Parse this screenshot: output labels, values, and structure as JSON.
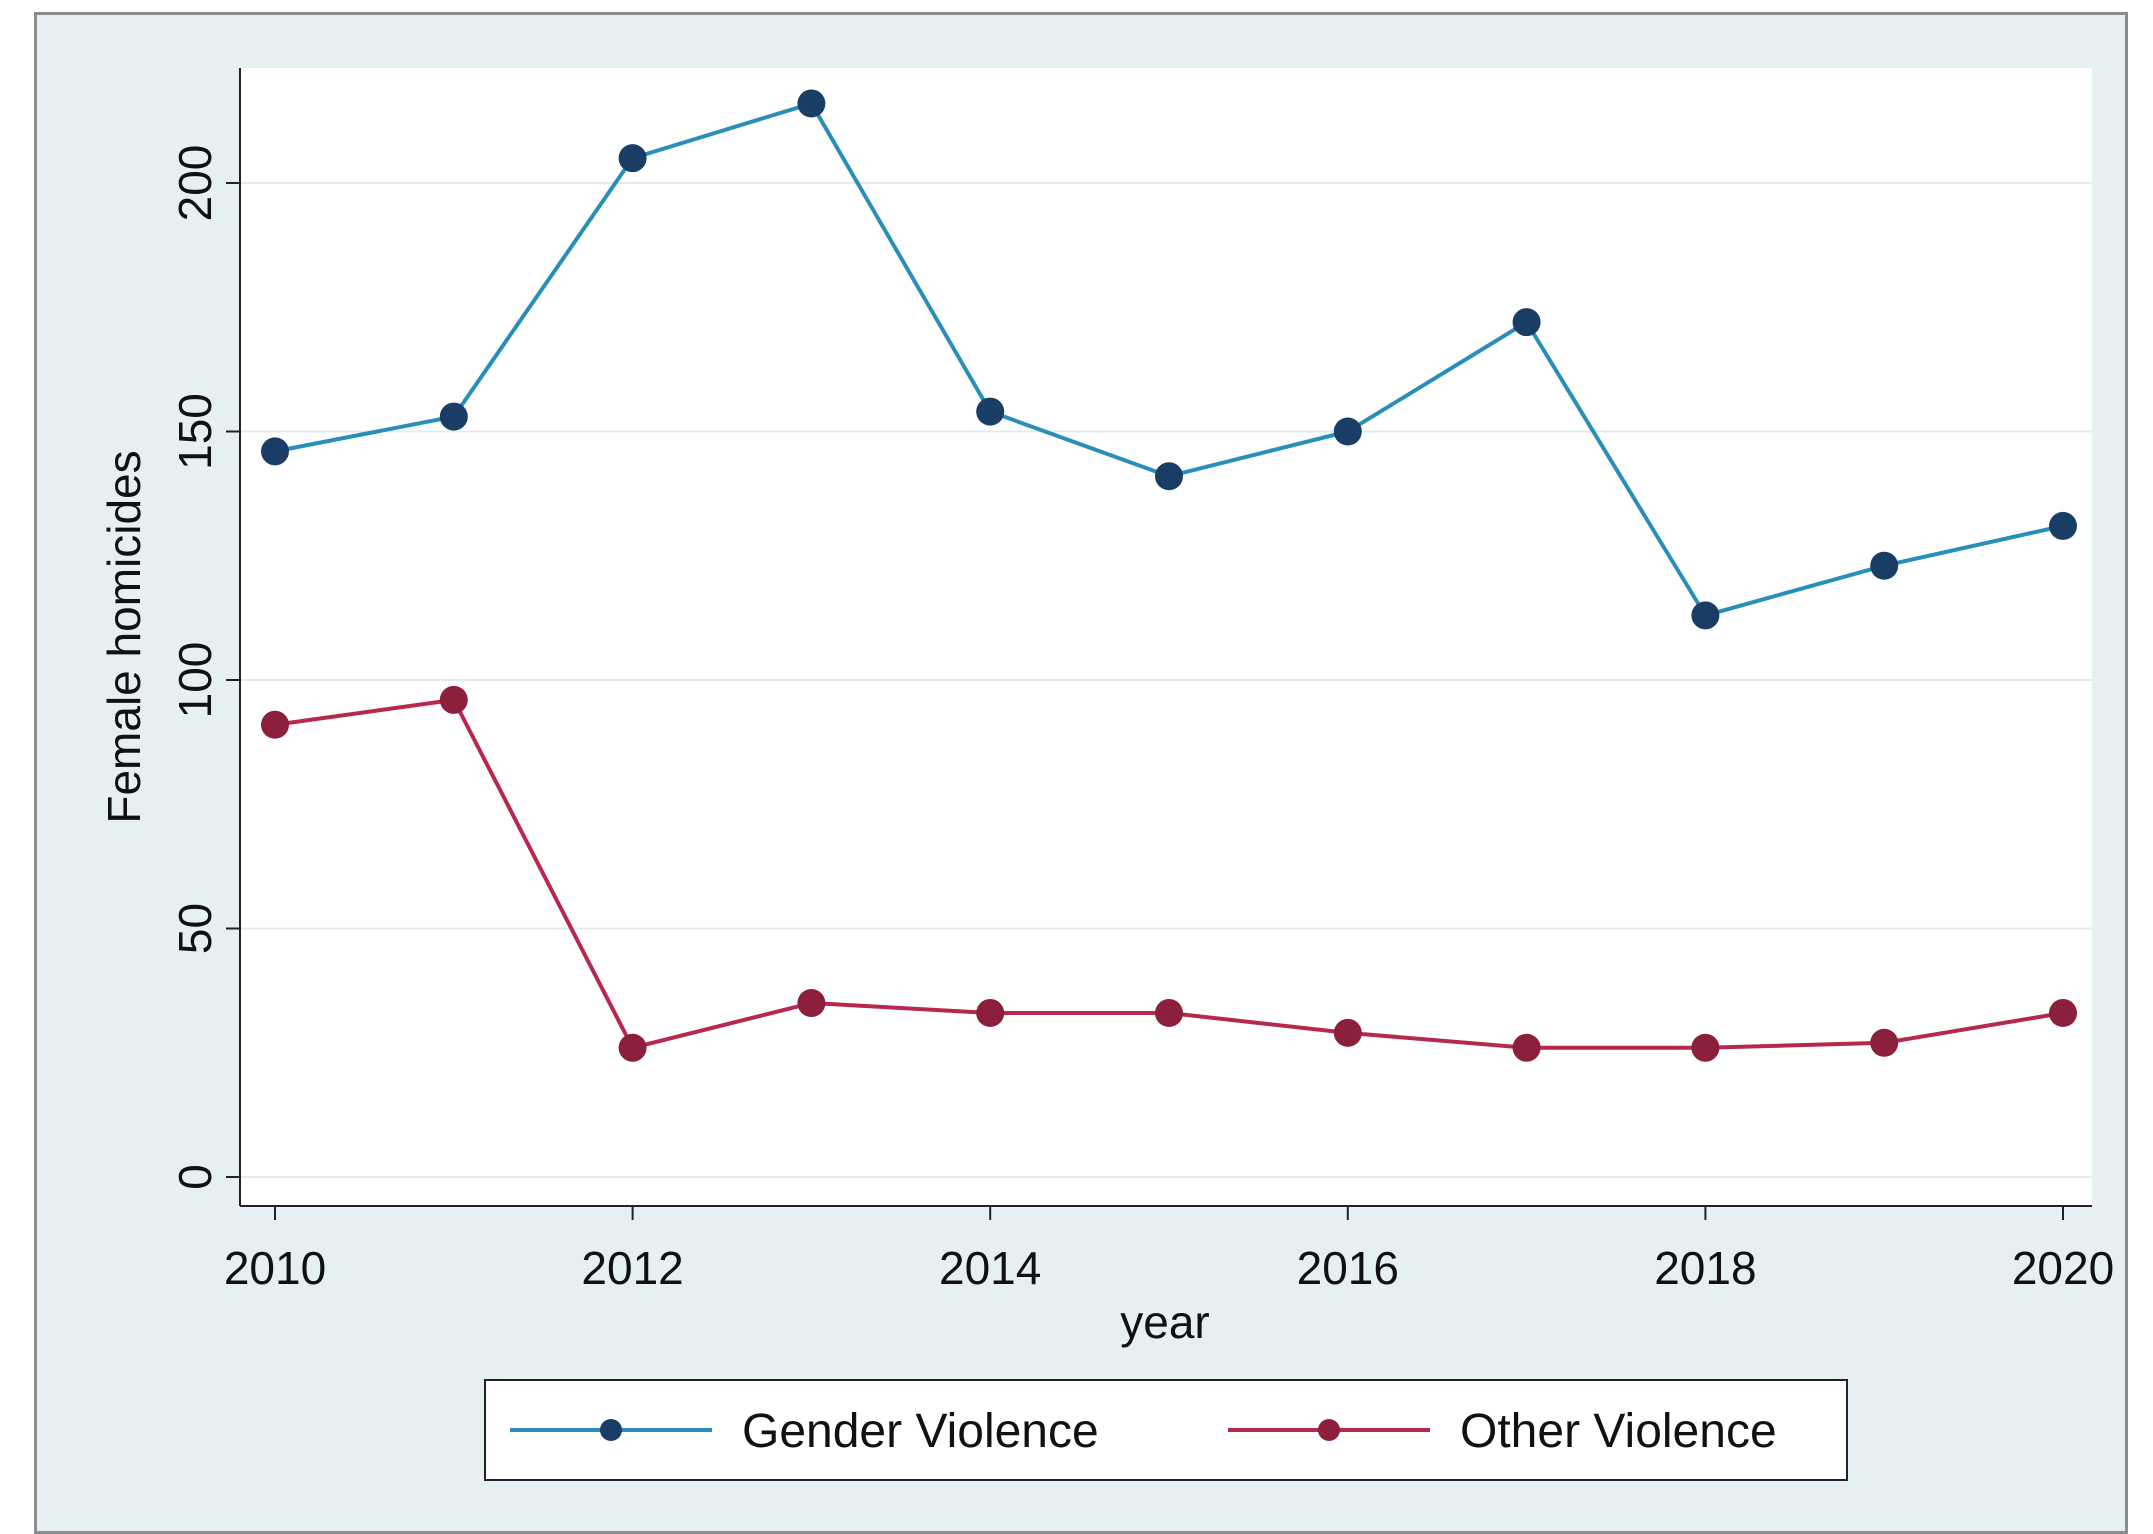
{
  "chart_data": {
    "type": "line",
    "title": "",
    "xlabel": "year",
    "ylabel": "Female homicides",
    "x": [
      2010,
      2011,
      2012,
      2013,
      2014,
      2015,
      2016,
      2017,
      2018,
      2019,
      2020
    ],
    "xticks": [
      2010,
      2012,
      2014,
      2016,
      2018,
      2020
    ],
    "yticks": [
      0,
      50,
      100,
      150,
      200
    ],
    "xlim": [
      2010,
      2020
    ],
    "ylim": [
      0,
      200
    ],
    "grid": "horizontal",
    "legend_position": "bottom",
    "series": [
      {
        "name": "Gender Violence",
        "color": "#2a8fb8",
        "marker_color": "#1a3d66",
        "values": [
          146,
          153,
          205,
          216,
          154,
          141,
          150,
          172,
          113,
          123,
          131
        ]
      },
      {
        "name": "Other Violence",
        "color": "#b8284e",
        "marker_color": "#8c1f3c",
        "values": [
          91,
          96,
          26,
          35,
          33,
          33,
          29,
          26,
          26,
          27,
          33
        ]
      }
    ]
  }
}
